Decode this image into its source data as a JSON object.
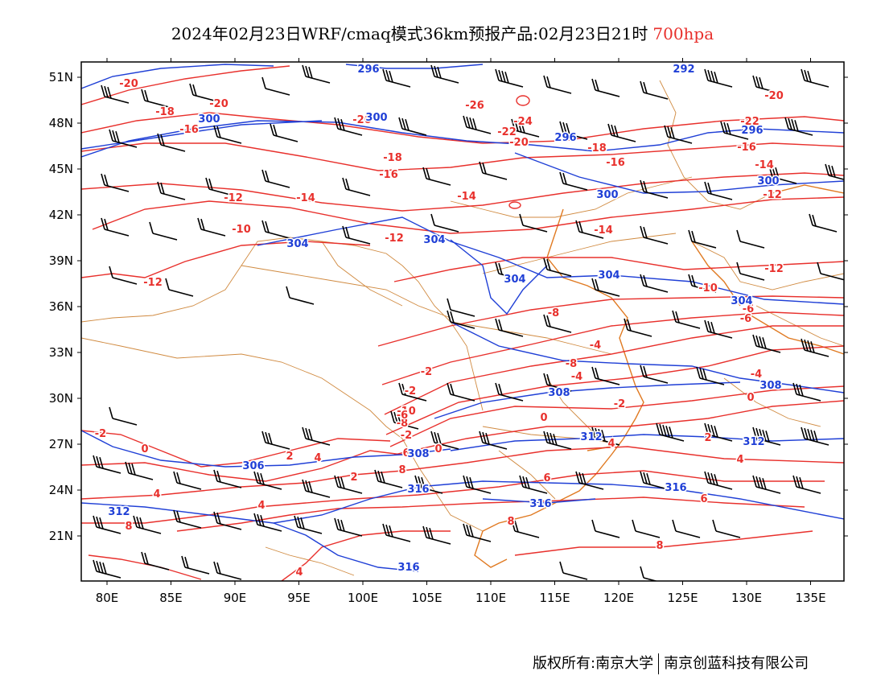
{
  "title": {
    "main": "2024年02月23日WRF/cmaq模式36km预报产品:02月23日21时",
    "level": "700hpa"
  },
  "colors": {
    "temperature": "#e8302c",
    "height": "#1f3fd6",
    "coast": "#e07a22",
    "border": "#d08a40",
    "wind": "#000000"
  },
  "axes": {
    "lat_labels": [
      "51N",
      "48N",
      "45N",
      "42N",
      "39N",
      "36N",
      "33N",
      "30N",
      "27N",
      "24N",
      "21N"
    ],
    "lon_labels": [
      "80E",
      "85E",
      "90E",
      "95E",
      "100E",
      "105E",
      "110E",
      "115E",
      "120E",
      "125E",
      "130E",
      "135E"
    ]
  },
  "chart_data": {
    "type": "map",
    "lon_range": [
      78,
      138
    ],
    "lat_range": [
      18,
      52
    ],
    "temperature_labels": [
      "-20",
      "-20",
      "-18",
      "-16",
      "-20",
      "-26",
      "-24",
      "-22",
      "-20",
      "-22",
      "-20",
      "-18",
      "-16",
      "-16",
      "-16",
      "-18",
      "-14",
      "-12",
      "-14",
      "-12",
      "-14",
      "-12",
      "-12",
      "-10",
      "-14",
      "-12",
      "-10",
      "-8",
      "-6",
      "-8",
      "-4",
      "-6",
      "-4",
      "-2",
      "-2",
      "-10",
      "-8",
      "-6",
      "-4",
      "-2",
      "0",
      "-2",
      "0",
      "2",
      "0",
      "2",
      "4",
      "6",
      "4",
      "8",
      "4",
      "6",
      "4",
      "6",
      "8",
      "8",
      "8",
      "-2",
      "0",
      "2",
      "4",
      "4",
      "6"
    ],
    "height_labels": [
      "296",
      "300",
      "300",
      "296",
      "292",
      "296",
      "300",
      "300",
      "304",
      "304",
      "304",
      "304",
      "304",
      "308",
      "308",
      "312",
      "308",
      "306",
      "312",
      "312",
      "316",
      "316",
      "316",
      "316"
    ]
  },
  "footer": {
    "left": "版权所有:南京大学",
    "right": "南京创蓝科技有限公司"
  }
}
